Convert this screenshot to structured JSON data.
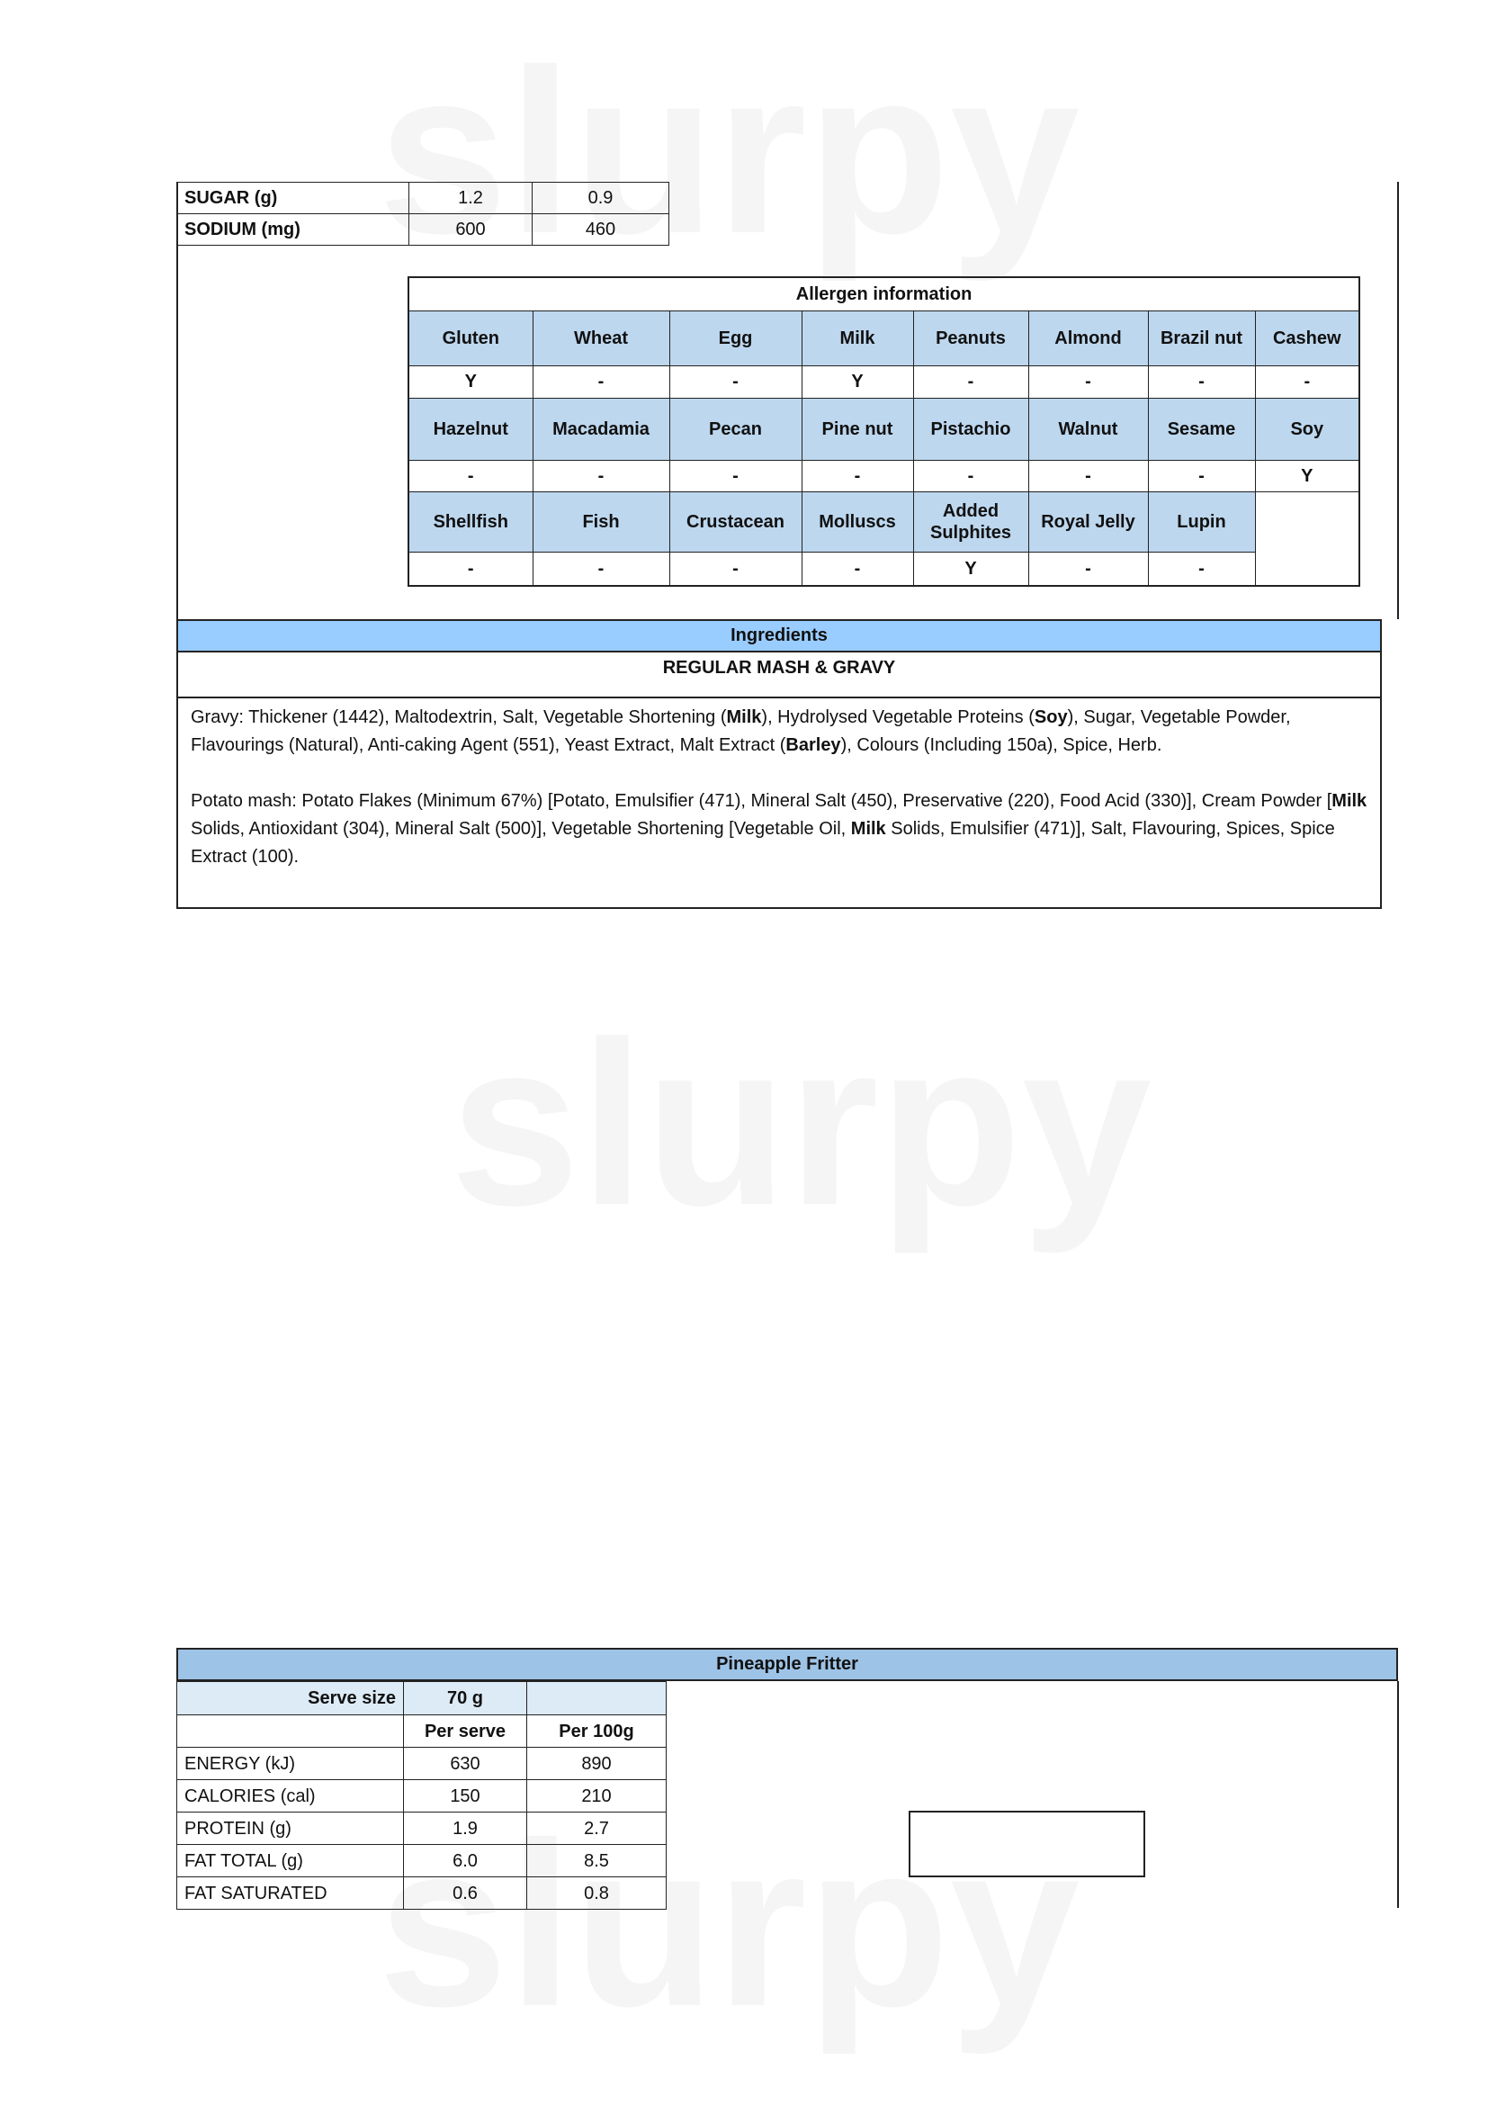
{
  "nutrition_top": {
    "rows": [
      {
        "label": "SUGAR (g)",
        "per_serve": "1.2",
        "per_100g": "0.9"
      },
      {
        "label": "SODIUM (mg)",
        "per_serve": "600",
        "per_100g": "460"
      }
    ]
  },
  "allergens": {
    "title": "Allergen information",
    "groups": [
      {
        "names": [
          "Gluten",
          "Wheat",
          "Egg",
          "Milk",
          "Peanuts",
          "Almond",
          "Brazil nut",
          "Cashew"
        ],
        "values": [
          "Y",
          "-",
          "-",
          "Y",
          "-",
          "-",
          "-",
          "-"
        ]
      },
      {
        "names": [
          "Hazelnut",
          "Macadamia",
          "Pecan",
          "Pine nut",
          "Pistachio",
          "Walnut",
          "Sesame",
          "Soy"
        ],
        "values": [
          "-",
          "-",
          "-",
          "-",
          "-",
          "-",
          "-",
          "Y"
        ]
      },
      {
        "names": [
          "Shellfish",
          "Fish",
          "Crustacean",
          "Molluscs",
          "Added Sulphites",
          "Royal Jelly",
          "Lupin"
        ],
        "values": [
          "-",
          "-",
          "-",
          "-",
          "Y",
          "-",
          "-"
        ]
      }
    ]
  },
  "ingredients": {
    "header": "Ingredients",
    "product": "REGULAR MASH & GRAVY",
    "gravy": [
      "Gravy: Thickener (1442), Maltodextrin, Salt, Vegetable Shortening (",
      "Milk",
      "), Hydrolysed Vegetable Proteins (",
      "Soy",
      "), Sugar, Vegetable Powder, Flavourings (Natural), Anti-caking Agent (551), Yeast Extract, Malt Extract (",
      "Barley",
      "), Colours (Including 150a), Spice, Herb."
    ],
    "mash": [
      "Potato mash: Potato Flakes (Minimum 67%) [Potato, Emulsifier (471), Mineral Salt (450), Preservative (220), Food Acid (330)], Cream Powder [",
      "Milk",
      " Solids, Antioxidant (304), Mineral Salt (500)], Vegetable Shortening [Vegetable Oil, ",
      "Milk",
      " Solids, Emulsifier (471)], Salt, Flavouring, Spices, Spice Extract (100)."
    ]
  },
  "fritter": {
    "title": "Pineapple Fritter",
    "serve_size_label": "Serve size",
    "serve_size": "70 g",
    "col_per_serve": "Per serve",
    "col_per_100g": "Per 100g",
    "rows": [
      {
        "label": "ENERGY (kJ)",
        "per_serve": "630",
        "per_100g": "890"
      },
      {
        "label": "CALORIES (cal)",
        "per_serve": "150",
        "per_100g": "210"
      },
      {
        "label": "PROTEIN (g)",
        "per_serve": "1.9",
        "per_100g": "2.7"
      },
      {
        "label": "FAT TOTAL (g)",
        "per_serve": "6.0",
        "per_100g": "8.5"
      },
      {
        "label": "FAT SATURATED",
        "per_serve": "0.6",
        "per_100g": "0.8"
      }
    ]
  },
  "watermark": "slurpy",
  "colors": {
    "header_blue": "#bdd7ee",
    "ingredients_blue": "#99ccff",
    "title_blue": "#9dc3e6"
  }
}
